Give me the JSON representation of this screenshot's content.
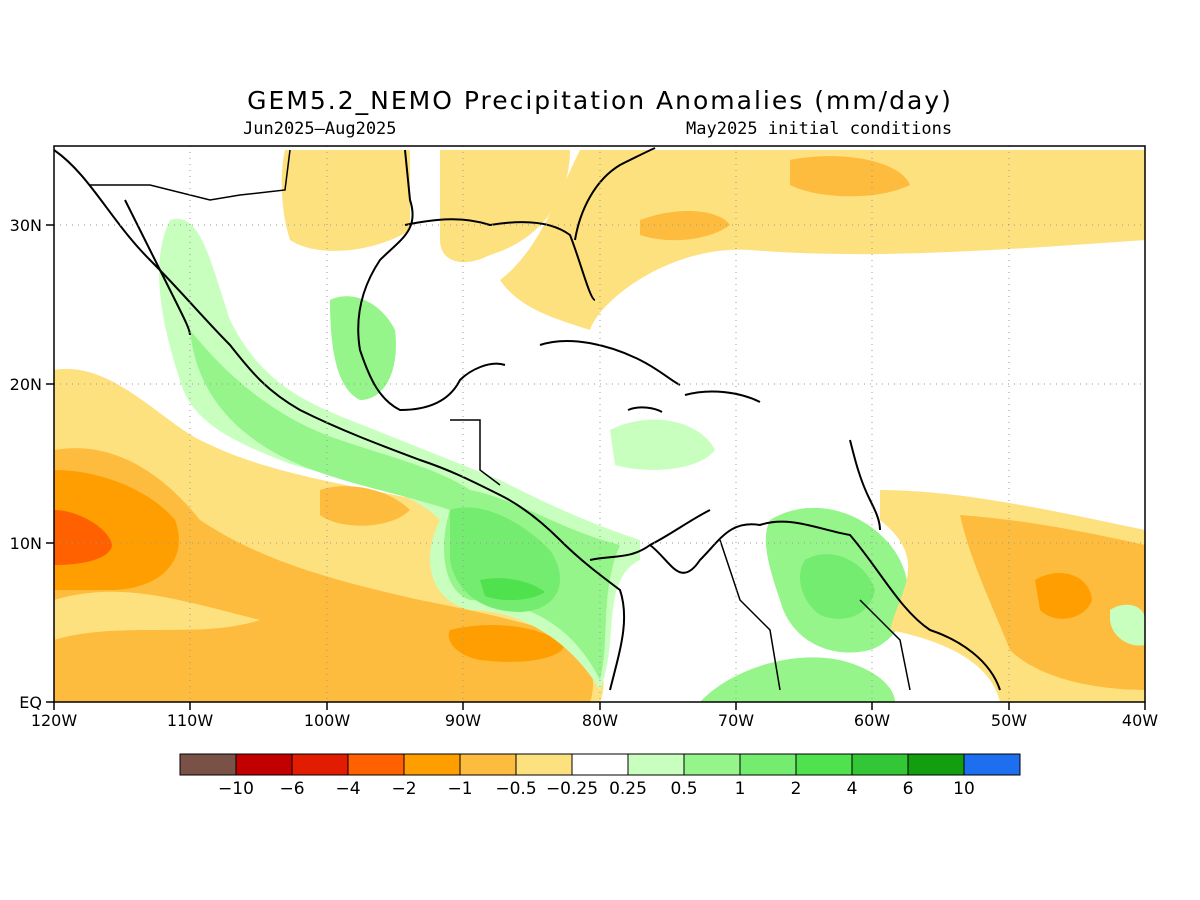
{
  "title": "GEM5.2_NEMO Precipitation Anomalies (mm/day)",
  "subtitle_left": "Jun2025–Aug2025",
  "subtitle_right": "May2025 initial conditions",
  "colors": {
    "brown": "#7a5147",
    "dark_red": "#c30000",
    "red": "#e11c00",
    "orange_red": "#ff6000",
    "orange": "#ff9e00",
    "light_orange": "#fdbc3d",
    "pale_yellow": "#fee17f",
    "white": "#ffffff",
    "pale_green": "#c8ffbe",
    "light_green": "#95f58a",
    "green": "#74ec6f",
    "bright_green": "#50e14f",
    "mid_green": "#33c636",
    "dark_green": "#129e0e",
    "blue": "#1e6ef0"
  },
  "map": {
    "lon_ticks": [
      "120W",
      "110W",
      "100W",
      "90W",
      "80W",
      "70W",
      "60W",
      "50W",
      "40W"
    ],
    "lat_ticks": [
      "EQ",
      "10N",
      "20N",
      "30N"
    ],
    "lon_range": [
      -120,
      -40
    ],
    "lat_range": [
      0,
      35
    ],
    "grid": "dotted"
  },
  "colorbar": {
    "labels": [
      "−10",
      "−6",
      "−4",
      "−2",
      "−1",
      "−0.5",
      "−0.25",
      "0.25",
      "0.5",
      "1",
      "2",
      "4",
      "6",
      "10"
    ],
    "swatch_colors": [
      "#7a5147",
      "#c30000",
      "#e11c00",
      "#ff6000",
      "#ff9e00",
      "#fdbc3d",
      "#fee17f",
      "#ffffff",
      "#c8ffbe",
      "#95f58a",
      "#74ec6f",
      "#50e14f",
      "#33c636",
      "#129e0e",
      "#1e6ef0"
    ]
  }
}
